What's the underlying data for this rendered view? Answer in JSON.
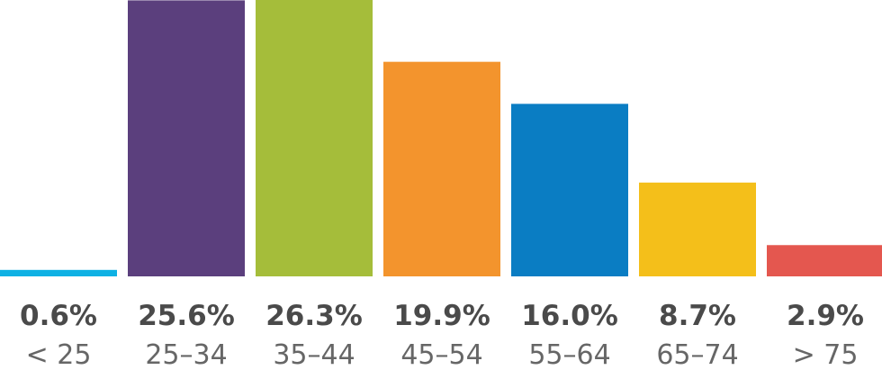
{
  "chart_data": {
    "type": "bar",
    "categories": [
      "< 25",
      "25–34",
      "35–44",
      "45–54",
      "55–64",
      "65–74",
      "> 75"
    ],
    "values": [
      0.6,
      25.6,
      26.3,
      19.9,
      16.0,
      8.7,
      2.9
    ],
    "value_labels": [
      "0.6%",
      "25.6%",
      "26.3%",
      "19.9%",
      "16.0%",
      "8.7%",
      "2.9%"
    ],
    "colors": [
      "#0eb1e4",
      "#5b3f7d",
      "#a5bd3a",
      "#f3942d",
      "#0a7dc3",
      "#f4bf1a",
      "#e4574f"
    ],
    "ylim": [
      0,
      26.3
    ],
    "grid": false,
    "legend": "none"
  }
}
